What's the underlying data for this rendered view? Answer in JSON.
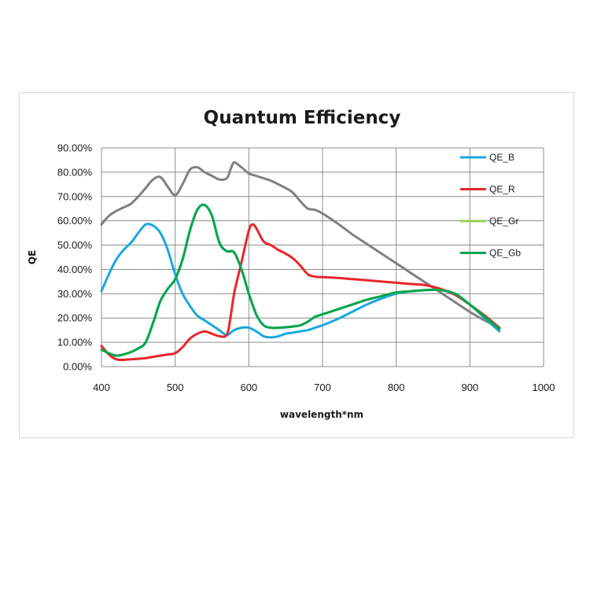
{
  "chart_data": {
    "type": "line",
    "title": "Quantum Efficiency",
    "xlabel": "wavelength*nm",
    "ylabel": "QE",
    "xlim": [
      400,
      1000
    ],
    "ylim": [
      0,
      90
    ],
    "x_ticks": [
      400,
      500,
      600,
      700,
      800,
      900,
      1000
    ],
    "y_ticks": [
      0,
      10,
      20,
      30,
      40,
      50,
      60,
      70,
      80,
      90
    ],
    "y_tick_labels": [
      "0.00%",
      "10.00%",
      "20.00%",
      "30.00%",
      "40.00%",
      "50.00%",
      "60.00%",
      "70.00%",
      "80.00%",
      "90.00%"
    ],
    "x_tick_labels": [
      "400",
      "500",
      "600",
      "700",
      "800",
      "900",
      "1000"
    ],
    "grid": true,
    "legend_position": "right",
    "series": [
      {
        "name": "QE_B",
        "color": "#1aa7e0",
        "x": [
          400,
          410,
          420,
          430,
          440,
          450,
          460,
          470,
          480,
          490,
          500,
          510,
          520,
          530,
          540,
          550,
          560,
          570,
          580,
          590,
          600,
          610,
          620,
          630,
          640,
          650,
          660,
          670,
          680,
          690,
          700,
          720,
          740,
          760,
          780,
          800,
          820,
          840,
          860,
          880,
          900,
          920,
          940
        ],
        "y": [
          31,
          38,
          44,
          48,
          51,
          55,
          58.5,
          58,
          55,
          48,
          38,
          30,
          25,
          21,
          19,
          17,
          15,
          13,
          15,
          16,
          16,
          14.5,
          12.5,
          12,
          12.5,
          13.5,
          14,
          14.5,
          15,
          16,
          17,
          19.5,
          22.5,
          25.5,
          28,
          30,
          31,
          31.5,
          31.5,
          29.5,
          25.5,
          20,
          14.5
        ]
      },
      {
        "name": "QE_R",
        "color": "#e8262a",
        "x": [
          400,
          410,
          420,
          430,
          440,
          450,
          460,
          470,
          480,
          490,
          500,
          510,
          520,
          530,
          540,
          550,
          560,
          570,
          575,
          580,
          590,
          600,
          605,
          610,
          620,
          630,
          640,
          650,
          660,
          670,
          680,
          690,
          700,
          720,
          740,
          760,
          780,
          800,
          820,
          840,
          860,
          880,
          900,
          920,
          940
        ],
        "y": [
          8.5,
          5,
          3,
          2.8,
          3,
          3.2,
          3.5,
          4,
          4.5,
          5,
          5.5,
          8,
          11.5,
          13.5,
          14.5,
          13.5,
          12.5,
          13,
          20,
          30,
          43,
          56,
          58.5,
          57,
          51.5,
          50,
          48,
          46.5,
          44.5,
          41.5,
          38,
          37,
          36.8,
          36.5,
          36,
          35.5,
          35,
          34.5,
          34,
          33.5,
          32,
          29.5,
          25.5,
          21,
          16
        ]
      },
      {
        "name": "QE_Gr",
        "color": "#92d050",
        "x": [
          400,
          410,
          420,
          430,
          440,
          450,
          460,
          470,
          480,
          490,
          500,
          510,
          520,
          530,
          540,
          550,
          560,
          570,
          580,
          590,
          600,
          610,
          620,
          630,
          640,
          650,
          660,
          670,
          680,
          690,
          700,
          720,
          740,
          760,
          780,
          800,
          820,
          840,
          860,
          880,
          900,
          920,
          940
        ],
        "y": [
          7,
          5.5,
          4.5,
          5,
          6,
          7.5,
          10,
          18,
          27,
          32,
          36,
          44,
          56,
          64.5,
          66.5,
          62,
          51,
          47.5,
          47,
          40,
          30,
          21.5,
          17,
          16,
          16,
          16.2,
          16.5,
          17,
          18.5,
          20.5,
          21.5,
          23.5,
          25.5,
          27.5,
          29,
          30.5,
          31,
          31.5,
          31.5,
          30,
          25.5,
          20.5,
          15.5
        ]
      },
      {
        "name": "QE_Gb",
        "color": "#00a54f",
        "x": [
          400,
          410,
          420,
          430,
          440,
          450,
          460,
          470,
          480,
          490,
          500,
          510,
          520,
          530,
          540,
          550,
          560,
          570,
          580,
          590,
          600,
          610,
          620,
          630,
          640,
          650,
          660,
          670,
          680,
          690,
          700,
          720,
          740,
          760,
          780,
          800,
          820,
          840,
          860,
          880,
          900,
          920,
          940
        ],
        "y": [
          7,
          5.5,
          4.5,
          5,
          6,
          7.5,
          10,
          18,
          27,
          32,
          36,
          44,
          56,
          64.5,
          66.5,
          62,
          51,
          47.5,
          47,
          40,
          30,
          21.5,
          17,
          16,
          16,
          16.2,
          16.5,
          17,
          18.5,
          20.5,
          21.5,
          23.5,
          25.5,
          27.5,
          29,
          30.5,
          31,
          31.5,
          31.5,
          30,
          25.5,
          20.5,
          15.5
        ]
      },
      {
        "color": "#808080",
        "x": [
          400,
          410,
          420,
          430,
          440,
          450,
          460,
          470,
          480,
          490,
          500,
          510,
          520,
          530,
          540,
          550,
          560,
          570,
          575,
          580,
          590,
          600,
          610,
          620,
          630,
          640,
          650,
          660,
          670,
          680,
          690,
          700,
          720,
          740,
          760,
          780,
          800,
          820,
          840,
          860,
          880,
          900,
          920,
          940
        ],
        "y": [
          58.5,
          62,
          64,
          65.5,
          67,
          70,
          73.5,
          77,
          78,
          74,
          70.5,
          75,
          81,
          82,
          80,
          78.5,
          77,
          77.5,
          81,
          84,
          82,
          79.5,
          78.5,
          77.5,
          76.5,
          75,
          73.5,
          71.5,
          68,
          65,
          64.5,
          63,
          59,
          54.5,
          50.5,
          46.5,
          42.5,
          38.5,
          34.5,
          30.5,
          26.5,
          22.5,
          19,
          16
        ]
      }
    ]
  }
}
